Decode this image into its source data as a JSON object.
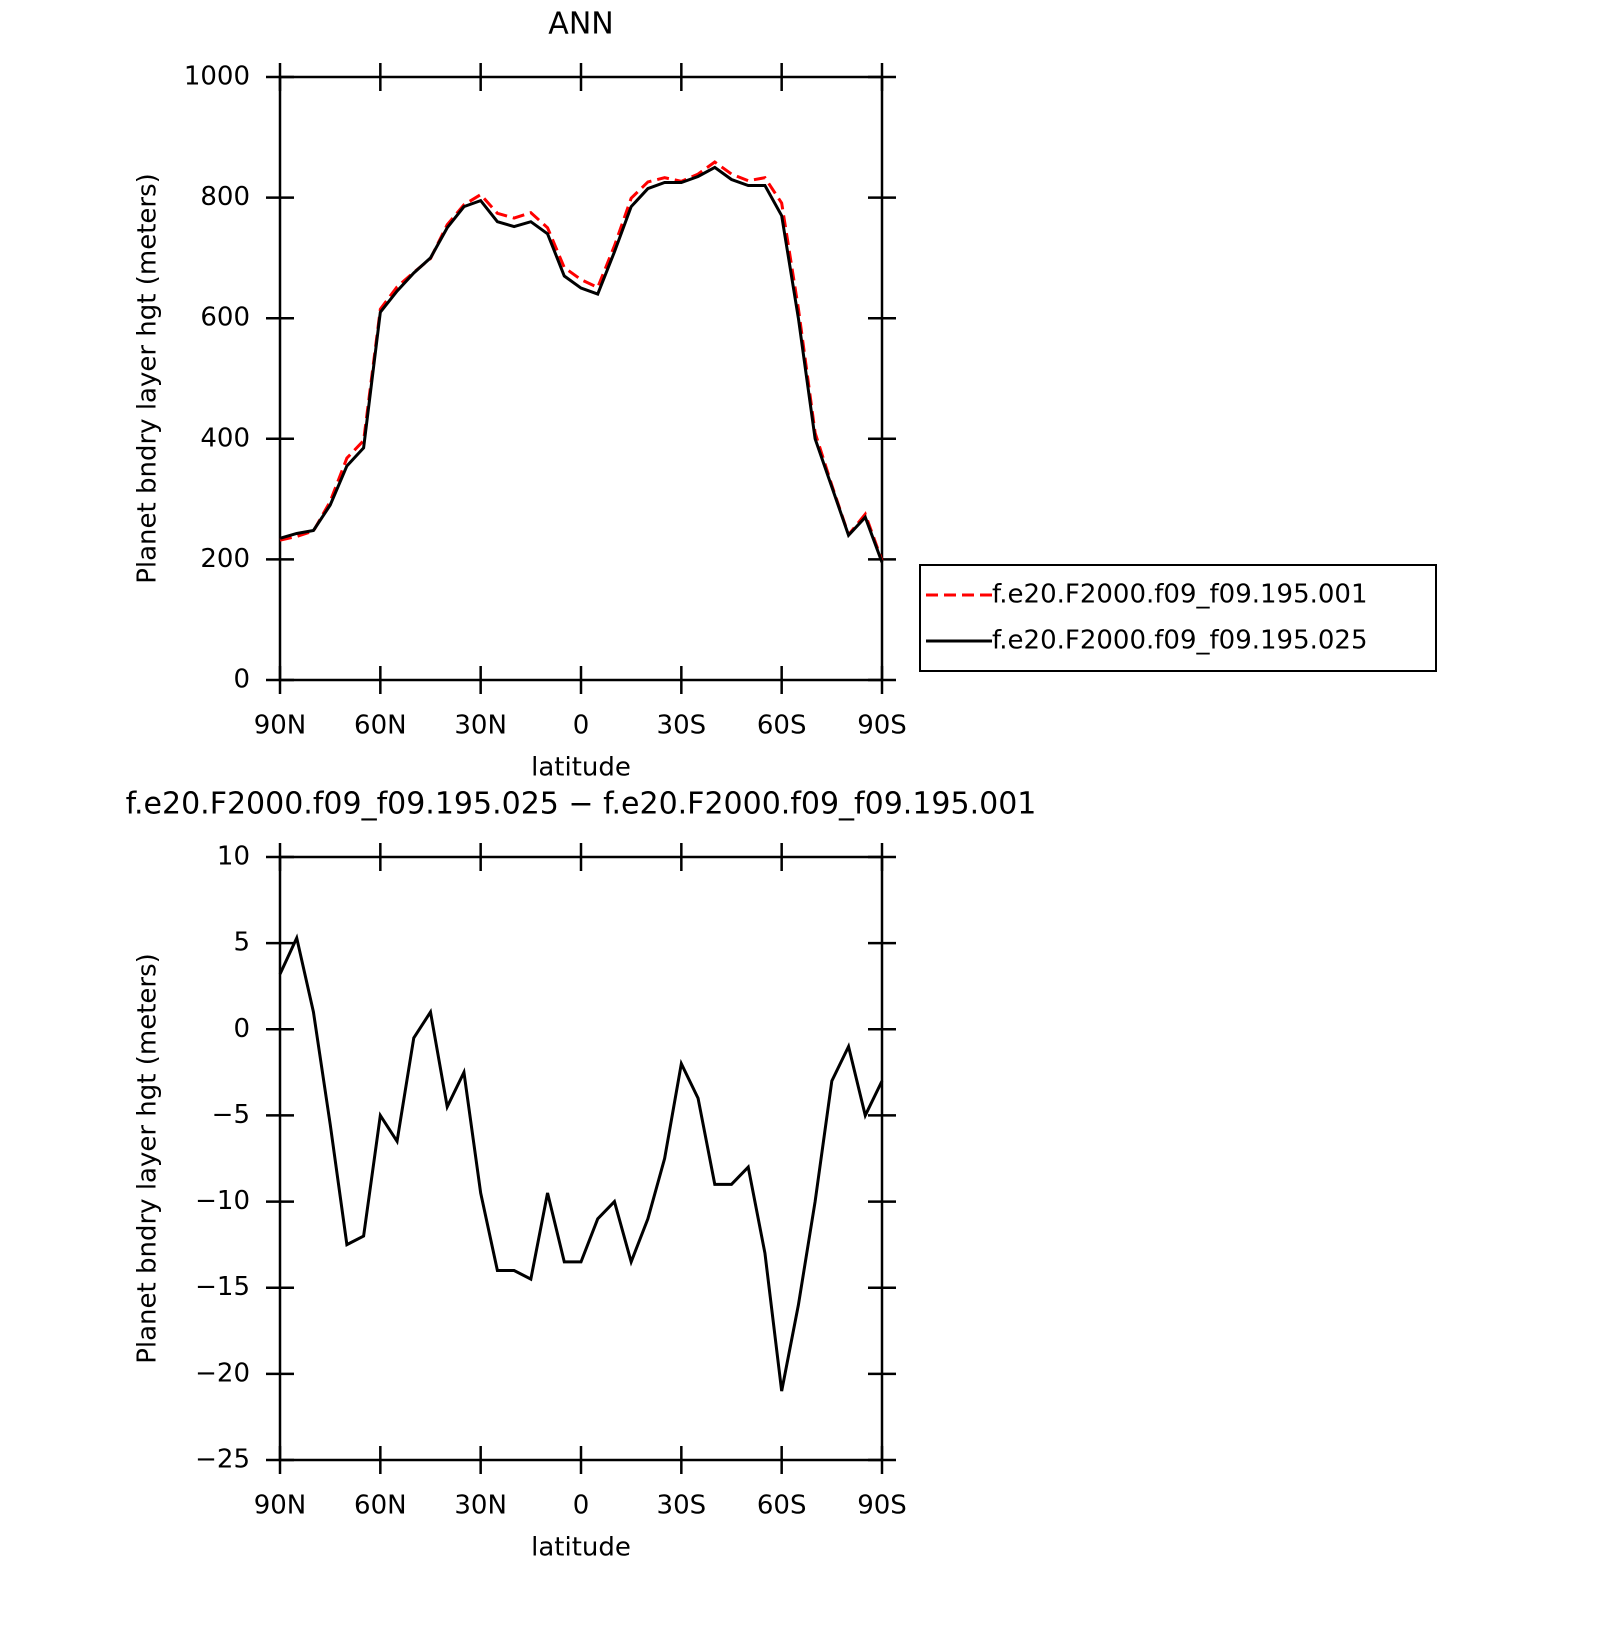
{
  "chart_data": [
    {
      "type": "line",
      "title": "ANN",
      "xlabel": "latitude",
      "ylabel": "Planet bndry layer hgt (meters)",
      "x": [
        90,
        85,
        80,
        75,
        70,
        65,
        60,
        55,
        50,
        45,
        40,
        35,
        30,
        25,
        20,
        15,
        10,
        5,
        0,
        -5,
        -10,
        -15,
        -20,
        -25,
        -30,
        -35,
        -40,
        -45,
        -50,
        -55,
        -60,
        -65,
        -70,
        -75,
        -80,
        -85,
        -90
      ],
      "series": [
        {
          "name": "f.e20.F2000.f09_f09.195.001",
          "color": "#ff0000",
          "dash": true,
          "values": [
            232,
            238,
            247,
            296,
            368,
            397,
            615,
            652,
            676,
            699,
            755,
            788,
            805,
            774,
            766,
            775,
            750,
            684,
            664,
            651,
            720,
            799,
            826,
            833,
            827,
            839,
            859,
            839,
            828,
            833,
            791,
            616,
            410,
            323,
            241,
            275,
            198
          ]
        },
        {
          "name": "f.e20.F2000.f09_f09.195.025",
          "color": "#000000",
          "values": [
            235,
            243,
            248,
            290,
            355,
            385,
            610,
            645,
            675,
            700,
            750,
            785,
            795,
            760,
            752,
            760,
            740,
            670,
            650,
            640,
            710,
            785,
            815,
            825,
            825,
            835,
            850,
            830,
            820,
            820,
            770,
            600,
            400,
            320,
            240,
            270,
            195
          ]
        }
      ],
      "xlim": [
        90,
        -90
      ],
      "xticks": [
        {
          "value": 90,
          "label": "90N"
        },
        {
          "value": 60,
          "label": "60N"
        },
        {
          "value": 30,
          "label": "30N"
        },
        0,
        {
          "value": -30,
          "label": "30S"
        },
        {
          "value": -60,
          "label": "60S"
        },
        {
          "value": -90,
          "label": "90S"
        }
      ],
      "ylim": [
        0,
        1000
      ],
      "yticks": [
        0,
        200,
        400,
        600,
        800,
        1000
      ],
      "legend": "right"
    },
    {
      "type": "line",
      "title": "f.e20.F2000.f09_f09.195.025 − f.e20.F2000.f09_f09.195.001",
      "xlabel": "latitude",
      "ylabel": "Planet bndry layer hgt (meters)",
      "x": [
        90,
        85,
        80,
        75,
        70,
        65,
        60,
        55,
        50,
        45,
        40,
        35,
        30,
        25,
        20,
        15,
        10,
        5,
        0,
        -5,
        -10,
        -15,
        -20,
        -25,
        -30,
        -35,
        -40,
        -45,
        -50,
        -55,
        -60,
        -65,
        -70,
        -75,
        -80,
        -85,
        -90
      ],
      "series": [
        {
          "color": "#000000",
          "values": [
            3.2,
            5.3,
            1,
            -5.5,
            -12.5,
            -12,
            -5,
            -6.5,
            -0.5,
            1,
            -4.5,
            -2.5,
            -9.5,
            -14,
            -14,
            -14.5,
            -9.5,
            -13.5,
            -13.5,
            -11,
            -10,
            -13.5,
            -11,
            -7.5,
            -2,
            -4,
            -9,
            -9,
            -8,
            -13,
            -21,
            -16,
            -10,
            -3,
            -1,
            -5,
            -3
          ]
        }
      ],
      "xlim": [
        90,
        -90
      ],
      "xticks": [
        {
          "value": 90,
          "label": "90N"
        },
        {
          "value": 60,
          "label": "60N"
        },
        {
          "value": 30,
          "label": "30N"
        },
        0,
        {
          "value": -30,
          "label": "30S"
        },
        {
          "value": -60,
          "label": "60S"
        },
        {
          "value": -90,
          "label": "90S"
        }
      ],
      "ylim": [
        -25,
        10
      ],
      "yticks": [
        {
          "value": -25,
          "label": "−25"
        },
        {
          "value": -20,
          "label": "−20"
        },
        {
          "value": -15,
          "label": "−15"
        },
        {
          "value": -10,
          "label": "−10"
        },
        {
          "value": -5,
          "label": "−5"
        },
        0,
        5,
        10
      ]
    }
  ]
}
